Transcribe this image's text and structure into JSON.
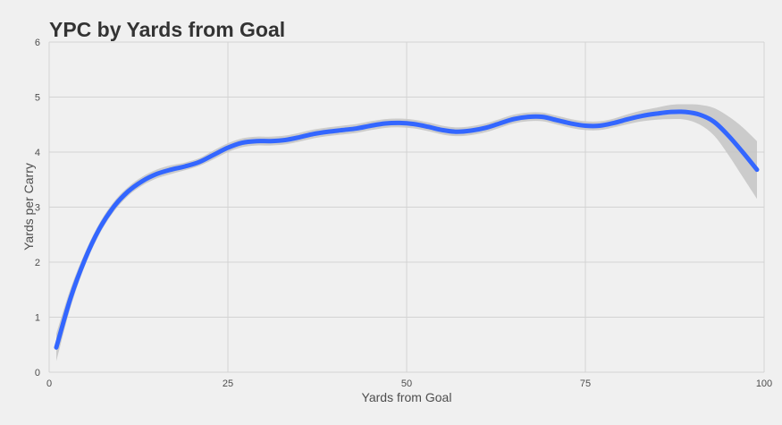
{
  "chart_data": {
    "type": "line",
    "title": "YPC by Yards from Goal",
    "xlabel": "Yards from Goal",
    "ylabel": "Yards per Carry",
    "xlim": [
      0,
      100
    ],
    "ylim": [
      0,
      6
    ],
    "x_ticks": [
      0,
      25,
      50,
      75,
      100
    ],
    "y_ticks": [
      0,
      1,
      2,
      3,
      4,
      5,
      6
    ],
    "grid": true,
    "line_color": "#3366ff",
    "band_color": "#c4c4c4",
    "series": [
      {
        "x": [
          1,
          3,
          5,
          7,
          9,
          11,
          13,
          15,
          17,
          19,
          21,
          23,
          25,
          27,
          29,
          31,
          33,
          35,
          37,
          39,
          41,
          43,
          45,
          47,
          49,
          51,
          53,
          55,
          57,
          59,
          61,
          63,
          65,
          67,
          69,
          71,
          73,
          75,
          77,
          79,
          81,
          83,
          85,
          87,
          89,
          91,
          93,
          95,
          97,
          99
        ],
        "y": [
          0.45,
          1.35,
          2.05,
          2.6,
          3.0,
          3.28,
          3.47,
          3.6,
          3.68,
          3.74,
          3.82,
          3.95,
          4.08,
          4.17,
          4.2,
          4.2,
          4.22,
          4.27,
          4.33,
          4.37,
          4.4,
          4.43,
          4.48,
          4.52,
          4.53,
          4.51,
          4.46,
          4.4,
          4.37,
          4.39,
          4.44,
          4.52,
          4.6,
          4.64,
          4.64,
          4.58,
          4.52,
          4.48,
          4.48,
          4.53,
          4.6,
          4.66,
          4.7,
          4.73,
          4.73,
          4.68,
          4.55,
          4.3,
          4.0,
          3.68
        ],
        "lower": [
          0.2,
          1.18,
          1.93,
          2.5,
          2.91,
          3.2,
          3.39,
          3.52,
          3.6,
          3.67,
          3.75,
          3.87,
          4.0,
          4.09,
          4.12,
          4.12,
          4.14,
          4.19,
          4.25,
          4.29,
          4.32,
          4.35,
          4.4,
          4.44,
          4.45,
          4.43,
          4.38,
          4.32,
          4.29,
          4.31,
          4.36,
          4.44,
          4.52,
          4.56,
          4.56,
          4.5,
          4.44,
          4.4,
          4.4,
          4.45,
          4.51,
          4.56,
          4.59,
          4.6,
          4.59,
          4.5,
          4.3,
          3.95,
          3.55,
          3.15
        ],
        "upper": [
          0.7,
          1.52,
          2.17,
          2.7,
          3.09,
          3.36,
          3.55,
          3.68,
          3.76,
          3.81,
          3.89,
          4.03,
          4.16,
          4.25,
          4.28,
          4.28,
          4.3,
          4.35,
          4.41,
          4.45,
          4.48,
          4.51,
          4.56,
          4.6,
          4.61,
          4.59,
          4.54,
          4.48,
          4.45,
          4.47,
          4.52,
          4.6,
          4.68,
          4.72,
          4.72,
          4.66,
          4.6,
          4.56,
          4.56,
          4.61,
          4.69,
          4.76,
          4.81,
          4.86,
          4.87,
          4.86,
          4.8,
          4.65,
          4.45,
          4.2
        ]
      }
    ]
  }
}
